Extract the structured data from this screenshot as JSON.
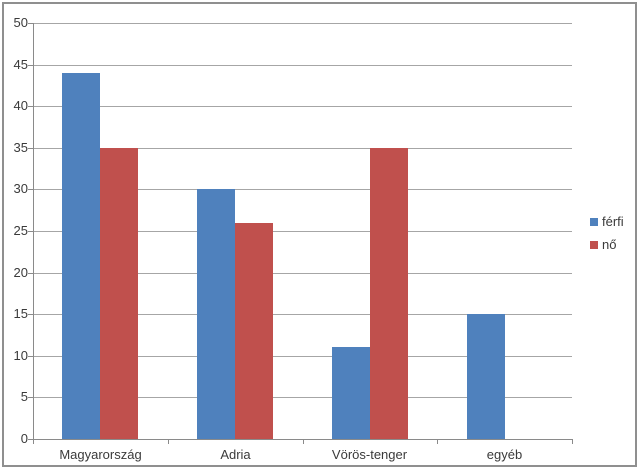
{
  "chart_data": {
    "type": "bar",
    "categories": [
      "Magyarország",
      "Adria",
      "Vörös-tenger",
      "egyéb"
    ],
    "series": [
      {
        "name": "férfi",
        "color": "#4f81bd",
        "values": [
          44,
          30,
          11,
          15
        ]
      },
      {
        "name": "nő",
        "color": "#c0504d",
        "values": [
          35,
          26,
          35,
          0
        ]
      }
    ],
    "ylim": [
      0,
      50
    ],
    "yticks": [
      0,
      5,
      10,
      15,
      20,
      25,
      30,
      35,
      40,
      45,
      50
    ],
    "grid": true,
    "legend_position": "right"
  },
  "colors": {
    "gridline": "#a6a6a6",
    "axis": "#8a8a8a",
    "text": "#3a3a3a",
    "frame_border": "#8f8f8f",
    "background": "#ffffff"
  }
}
